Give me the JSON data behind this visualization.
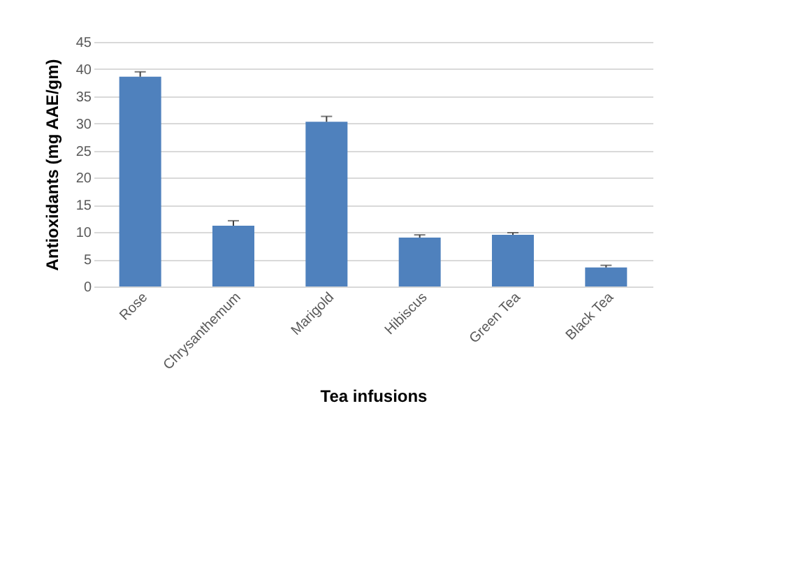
{
  "chart_data": {
    "type": "bar",
    "xlabel": "Tea infusions",
    "ylabel": "Antioxidants (mg AAE/gm)",
    "categories": [
      "Rose",
      "Chrysanthemum",
      "Marigold",
      "Hibiscus",
      "Green Tea",
      "Black Tea"
    ],
    "values": [
      38.6,
      11.2,
      30.3,
      9.0,
      9.5,
      3.5
    ],
    "errors": [
      [
        38.6,
        39.5
      ],
      [
        11.2,
        12.1
      ],
      [
        30.3,
        31.3
      ],
      [
        9.0,
        9.5
      ],
      [
        9.5,
        9.9
      ],
      [
        3.5,
        3.9
      ]
    ],
    "color": "#4f81bd",
    "ylim": [
      0,
      45
    ],
    "yticks": [
      0,
      5,
      10,
      15,
      20,
      25,
      30,
      35,
      40,
      45
    ],
    "grid": "y"
  }
}
